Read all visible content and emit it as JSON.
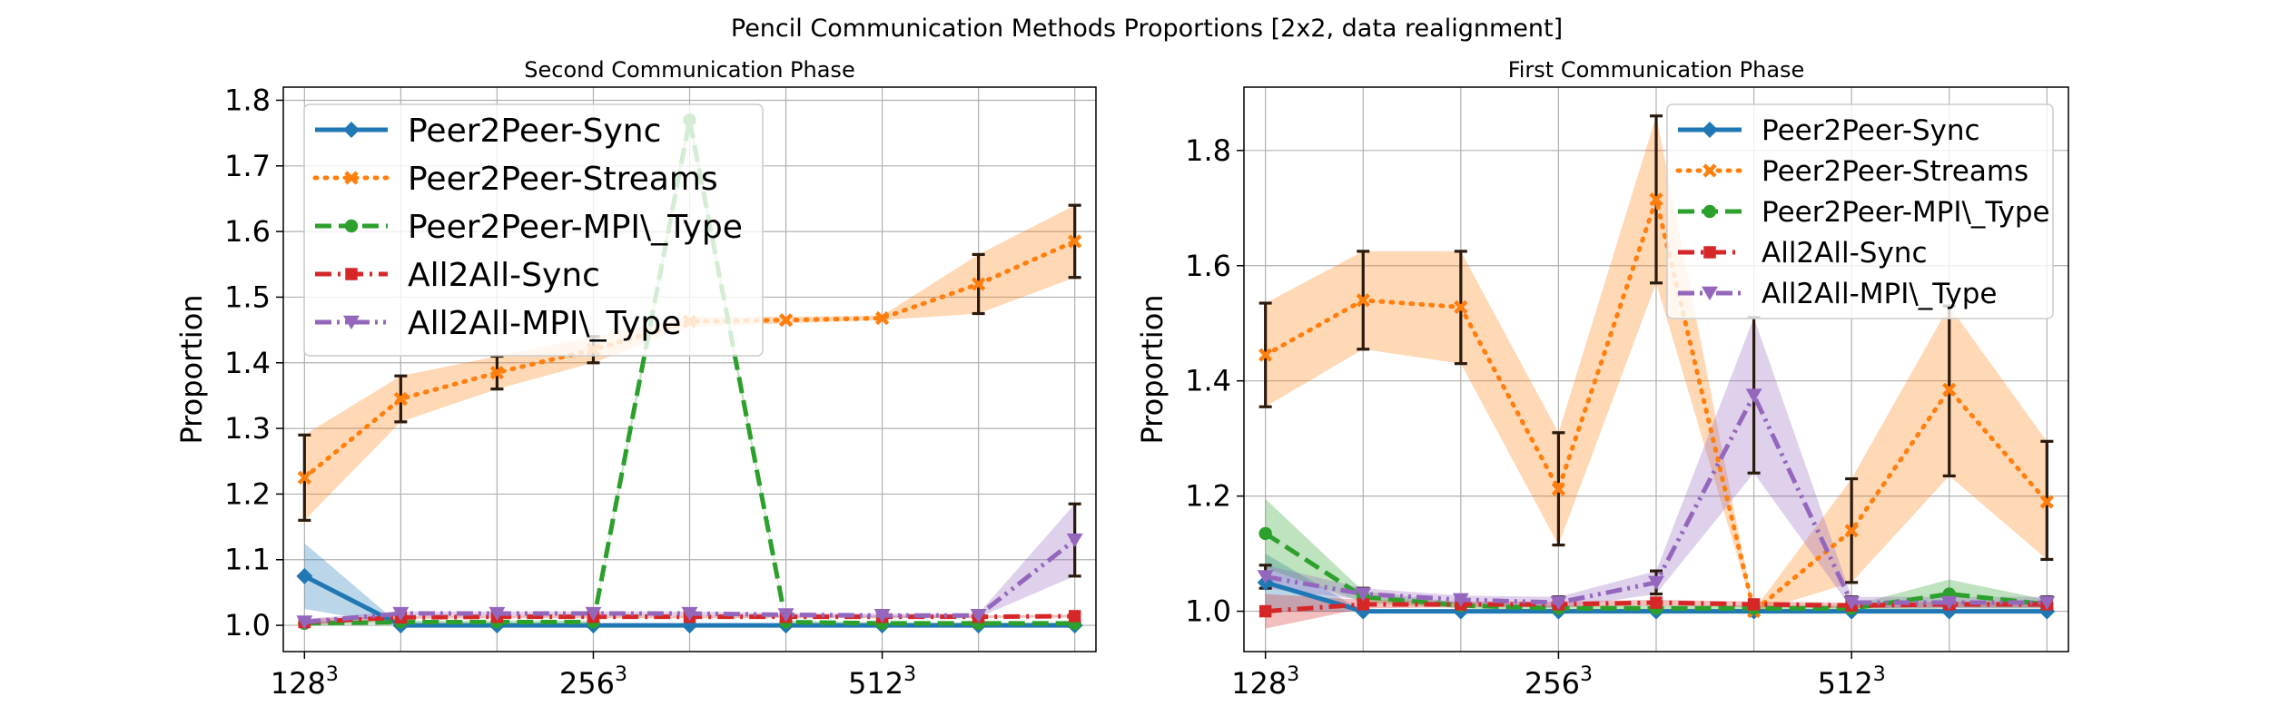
{
  "figure_title": "Pencil Communication Methods Proportions [2x2, data realignment]",
  "chart_data": [
    {
      "type": "line",
      "title": "Second Communication Phase",
      "xlabel": "",
      "ylabel": "Proportion",
      "x": [
        1,
        2,
        3,
        4,
        5,
        6,
        7,
        8,
        9
      ],
      "xticks": [
        {
          "x": 1,
          "base": "128",
          "exp": "3"
        },
        {
          "x": 4,
          "base": "256",
          "exp": "3"
        },
        {
          "x": 7,
          "base": "512",
          "exp": "3"
        }
      ],
      "xlim": [
        0.78,
        9.22
      ],
      "ylim": [
        0.96,
        1.82
      ],
      "yticks": [
        1.0,
        1.1,
        1.2,
        1.3,
        1.4,
        1.5,
        1.6,
        1.7,
        1.8
      ],
      "grid": true,
      "legend_position": "upper-left",
      "series": [
        {
          "name": "Peer2Peer-Sync",
          "color": "#1f77b4",
          "dash": "solid",
          "marker": "diamond",
          "values": [
            1.075,
            1.0,
            1.0,
            1.0,
            1.0,
            1.0,
            1.0,
            1.0,
            1.0
          ],
          "band": [
            [
              1.025,
              1.125
            ],
            [
              1.0,
              1.0
            ],
            [
              1.0,
              1.0
            ],
            [
              1.0,
              1.0
            ],
            [
              1.0,
              1.0
            ],
            [
              1.0,
              1.0
            ],
            [
              1.0,
              1.0
            ],
            [
              1.0,
              1.0
            ],
            [
              1.0,
              1.0
            ]
          ]
        },
        {
          "name": "Peer2Peer-Streams",
          "color": "#ff7f0e",
          "dash": "dotted",
          "marker": "x",
          "values": [
            1.225,
            1.345,
            1.385,
            1.42,
            1.463,
            1.465,
            1.468,
            1.52,
            1.585
          ],
          "band": [
            [
              1.16,
              1.29
            ],
            [
              1.31,
              1.38
            ],
            [
              1.36,
              1.41
            ],
            [
              1.4,
              1.44
            ],
            [
              1.455,
              1.47
            ],
            [
              1.46,
              1.47
            ],
            [
              1.465,
              1.472
            ],
            [
              1.475,
              1.565
            ],
            [
              1.53,
              1.64
            ]
          ],
          "errorbars": true
        },
        {
          "name": "Peer2Peer-MPI\\_Type",
          "color": "#2ca02c",
          "dash": "dashed",
          "marker": "circle",
          "values": [
            1.003,
            1.005,
            1.005,
            1.005,
            1.77,
            1.005,
            1.003,
            1.003,
            1.003
          ],
          "band": [
            [
              1.0,
              1.006
            ],
            [
              1.003,
              1.007
            ],
            [
              1.003,
              1.007
            ],
            [
              1.003,
              1.007
            ],
            [
              1.755,
              1.785
            ],
            [
              1.003,
              1.007
            ],
            [
              1.002,
              1.004
            ],
            [
              1.002,
              1.004
            ],
            [
              1.002,
              1.004
            ]
          ]
        },
        {
          "name": "All2All-Sync",
          "color": "#d62728",
          "dash": "dashdot",
          "marker": "square",
          "values": [
            1.005,
            1.012,
            1.013,
            1.013,
            1.013,
            1.013,
            1.013,
            1.013,
            1.014
          ],
          "band": [
            [
              1.0,
              1.01
            ],
            [
              1.01,
              1.014
            ],
            [
              1.011,
              1.015
            ],
            [
              1.011,
              1.015
            ],
            [
              1.011,
              1.015
            ],
            [
              1.011,
              1.015
            ],
            [
              1.011,
              1.015
            ],
            [
              1.011,
              1.015
            ],
            [
              1.012,
              1.016
            ]
          ]
        },
        {
          "name": "All2All-MPI\\_Type",
          "color": "#9467bd",
          "dash": "dashdotdot",
          "marker": "triangle-down",
          "values": [
            1.005,
            1.018,
            1.018,
            1.018,
            1.018,
            1.016,
            1.015,
            1.015,
            1.13
          ],
          "band": [
            [
              1.0,
              1.01
            ],
            [
              1.015,
              1.021
            ],
            [
              1.015,
              1.021
            ],
            [
              1.015,
              1.021
            ],
            [
              1.015,
              1.021
            ],
            [
              1.013,
              1.019
            ],
            [
              1.012,
              1.018
            ],
            [
              1.012,
              1.018
            ],
            [
              1.075,
              1.185
            ]
          ],
          "errorbars": true
        }
      ]
    },
    {
      "type": "line",
      "title": "First Communication Phase",
      "xlabel": "",
      "ylabel": "Proportion",
      "x": [
        1,
        2,
        3,
        4,
        5,
        6,
        7,
        8,
        9
      ],
      "xticks": [
        {
          "x": 1,
          "base": "128",
          "exp": "3"
        },
        {
          "x": 4,
          "base": "256",
          "exp": "3"
        },
        {
          "x": 7,
          "base": "512",
          "exp": "3"
        }
      ],
      "xlim": [
        0.78,
        9.22
      ],
      "ylim": [
        0.93,
        1.91
      ],
      "yticks": [
        1.0,
        1.2,
        1.4,
        1.6,
        1.8
      ],
      "grid": true,
      "legend_position": "upper-right",
      "series": [
        {
          "name": "Peer2Peer-Sync",
          "color": "#1f77b4",
          "dash": "solid",
          "marker": "diamond",
          "values": [
            1.05,
            1.0,
            1.0,
            1.0,
            1.0,
            1.0,
            1.0,
            1.0,
            1.0
          ],
          "band": [
            [
              1.0,
              1.1
            ],
            [
              1.0,
              1.0
            ],
            [
              1.0,
              1.0
            ],
            [
              1.0,
              1.0
            ],
            [
              1.0,
              1.0
            ],
            [
              1.0,
              1.0
            ],
            [
              1.0,
              1.0
            ],
            [
              1.0,
              1.0
            ],
            [
              1.0,
              1.0
            ]
          ]
        },
        {
          "name": "Peer2Peer-Streams",
          "color": "#ff7f0e",
          "dash": "dotted",
          "marker": "x",
          "values": [
            1.445,
            1.54,
            1.528,
            1.212,
            1.715,
            1.0,
            1.14,
            1.385,
            1.19
          ],
          "band": [
            [
              1.355,
              1.535
            ],
            [
              1.455,
              1.625
            ],
            [
              1.43,
              1.625
            ],
            [
              1.115,
              1.31
            ],
            [
              1.57,
              1.86
            ],
            [
              0.998,
              1.002
            ],
            [
              1.05,
              1.23
            ],
            [
              1.235,
              1.53
            ],
            [
              1.09,
              1.295
            ]
          ],
          "errorbars": true
        },
        {
          "name": "Peer2Peer-MPI\\_Type",
          "color": "#2ca02c",
          "dash": "dashed",
          "marker": "circle",
          "values": [
            1.135,
            1.025,
            1.01,
            1.005,
            1.005,
            1.005,
            1.005,
            1.03,
            1.012
          ],
          "band": [
            [
              1.075,
              1.195
            ],
            [
              1.015,
              1.035
            ],
            [
              1.005,
              1.015
            ],
            [
              1.0,
              1.01
            ],
            [
              1.0,
              1.01
            ],
            [
              1.0,
              1.01
            ],
            [
              1.0,
              1.01
            ],
            [
              1.005,
              1.055
            ],
            [
              1.005,
              1.02
            ]
          ]
        },
        {
          "name": "All2All-Sync",
          "color": "#d62728",
          "dash": "dashdot",
          "marker": "square",
          "values": [
            1.0,
            1.012,
            1.012,
            1.012,
            1.015,
            1.012,
            1.01,
            1.012,
            1.012
          ],
          "band": [
            [
              0.97,
              1.03
            ],
            [
              1.005,
              1.02
            ],
            [
              1.007,
              1.017
            ],
            [
              1.007,
              1.017
            ],
            [
              1.01,
              1.02
            ],
            [
              1.007,
              1.017
            ],
            [
              1.005,
              1.015
            ],
            [
              1.007,
              1.017
            ],
            [
              1.007,
              1.017
            ]
          ]
        },
        {
          "name": "All2All-MPI\\_Type",
          "color": "#9467bd",
          "dash": "dashdotdot",
          "marker": "triangle-down",
          "values": [
            1.06,
            1.03,
            1.02,
            1.015,
            1.05,
            1.375,
            1.015,
            1.015,
            1.015
          ],
          "band": [
            [
              1.04,
              1.08
            ],
            [
              1.02,
              1.04
            ],
            [
              1.013,
              1.027
            ],
            [
              1.005,
              1.025
            ],
            [
              1.03,
              1.07
            ],
            [
              1.24,
              1.51
            ],
            [
              1.005,
              1.025
            ],
            [
              1.005,
              1.025
            ],
            [
              1.005,
              1.025
            ]
          ],
          "errorbars": true
        }
      ]
    }
  ]
}
